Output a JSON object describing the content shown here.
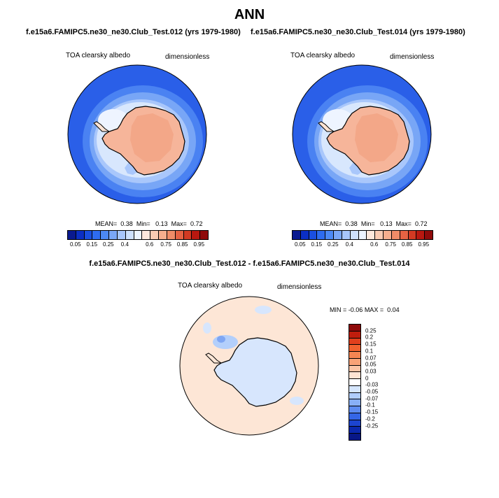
{
  "title": "ANN",
  "case1_title": "f.e15a6.FAMIPC5.ne30_ne30.Club_Test.012 (yrs 1979-1980)",
  "case2_title": "f.e15a6.FAMIPC5.ne30_ne30.Club_Test.014 (yrs 1979-1980)",
  "diff_title": "f.e15a6.FAMIPC5.ne30_ne30.Club_Test.012 - f.e15a6.FAMIPC5.ne30_ne30.Club_Test.014",
  "variable": "TOA clearsky albedo",
  "units": "dimensionless",
  "panel1_stats": {
    "mean_label": "MEAN=",
    "mean": "0.38",
    "min_label": "Min=",
    "min": "0.13",
    "max_label": "Max=",
    "max": "0.72"
  },
  "panel2_stats": {
    "mean_label": "MEAN=",
    "mean": "0.38",
    "min_label": "Min=",
    "min": "0.13",
    "max_label": "Max=",
    "max": "0.72"
  },
  "diff_stats": {
    "min_label": "MIN =",
    "min": "-0.06",
    "max_label": "MAX =",
    "max": "0.04"
  },
  "chart_data": [
    {
      "type": "heatmap",
      "title": "f.e15a6.FAMIPC5.ne30_ne30.Club_Test.012 (yrs 1979-1980)",
      "projection": "south-polar-stereographic",
      "variable": "TOA clearsky albedo",
      "units": "dimensionless",
      "stats": {
        "mean": 0.38,
        "min": 0.13,
        "max": 0.72
      },
      "colorbar": {
        "orientation": "horizontal",
        "tick_labels": [
          "0.05",
          "0.15",
          "0.25",
          "0.4",
          "0.6",
          "0.75",
          "0.85",
          "0.95"
        ],
        "colors": [
          "#0a1a8f",
          "#0b2fc4",
          "#1a4fe0",
          "#2e6cf0",
          "#4c89f5",
          "#7aa7f7",
          "#a8c6fb",
          "#cde0fc",
          "#ecf4ff",
          "#fde8dc",
          "#f9cbb3",
          "#f6ae8e",
          "#f08c68",
          "#e66243",
          "#d23a23",
          "#b81810",
          "#8f0a0a"
        ]
      },
      "regions": [
        {
          "name": "outer ocean ring",
          "value_range": [
            0.05,
            0.15
          ]
        },
        {
          "name": "sea-ice margin",
          "value_range": [
            0.25,
            0.6
          ]
        },
        {
          "name": "Antarctic ice sheet",
          "value_range": [
            0.6,
            0.75
          ]
        }
      ]
    },
    {
      "type": "heatmap",
      "title": "f.e15a6.FAMIPC5.ne30_ne30.Club_Test.014 (yrs 1979-1980)",
      "projection": "south-polar-stereographic",
      "variable": "TOA clearsky albedo",
      "units": "dimensionless",
      "stats": {
        "mean": 0.38,
        "min": 0.13,
        "max": 0.72
      },
      "colorbar": {
        "orientation": "horizontal",
        "tick_labels": [
          "0.05",
          "0.15",
          "0.25",
          "0.4",
          "0.6",
          "0.75",
          "0.85",
          "0.95"
        ],
        "colors": [
          "#0a1a8f",
          "#0b2fc4",
          "#1a4fe0",
          "#2e6cf0",
          "#4c89f5",
          "#7aa7f7",
          "#a8c6fb",
          "#cde0fc",
          "#ecf4ff",
          "#fde8dc",
          "#f9cbb3",
          "#f6ae8e",
          "#f08c68",
          "#e66243",
          "#d23a23",
          "#b81810",
          "#8f0a0a"
        ]
      },
      "regions": [
        {
          "name": "outer ocean ring",
          "value_range": [
            0.05,
            0.15
          ]
        },
        {
          "name": "sea-ice margin",
          "value_range": [
            0.25,
            0.6
          ]
        },
        {
          "name": "Antarctic ice sheet",
          "value_range": [
            0.6,
            0.75
          ]
        }
      ]
    },
    {
      "type": "heatmap",
      "title": "f.e15a6.FAMIPC5.ne30_ne30.Club_Test.012 - f.e15a6.FAMIPC5.ne30_ne30.Club_Test.014",
      "projection": "south-polar-stereographic",
      "variable": "TOA clearsky albedo",
      "units": "dimensionless",
      "stats": {
        "min": -0.06,
        "max": 0.04
      },
      "colorbar": {
        "orientation": "vertical",
        "tick_labels": [
          "0.25",
          "0.2",
          "0.15",
          "0.1",
          "0.07",
          "0.05",
          "0.03",
          "0",
          "-0.03",
          "-0.05",
          "-0.07",
          "-0.1",
          "-0.15",
          "-0.2",
          "-0.25"
        ],
        "colors": [
          "#8f0a0a",
          "#c01d0d",
          "#e0401d",
          "#f0622f",
          "#f58552",
          "#f9a277",
          "#fbc4a6",
          "#fde3d3",
          "#ffffff",
          "#d6e6fd",
          "#b0cdfb",
          "#88aff6",
          "#5d8bf0",
          "#3566e6",
          "#1c44d0",
          "#0b28ad",
          "#081787"
        ]
      },
      "regions": [
        {
          "name": "most of domain",
          "value_range": [
            0,
            0.03
          ]
        },
        {
          "name": "Antarctic ice sheet",
          "value_range": [
            -0.03,
            0
          ]
        }
      ]
    }
  ]
}
